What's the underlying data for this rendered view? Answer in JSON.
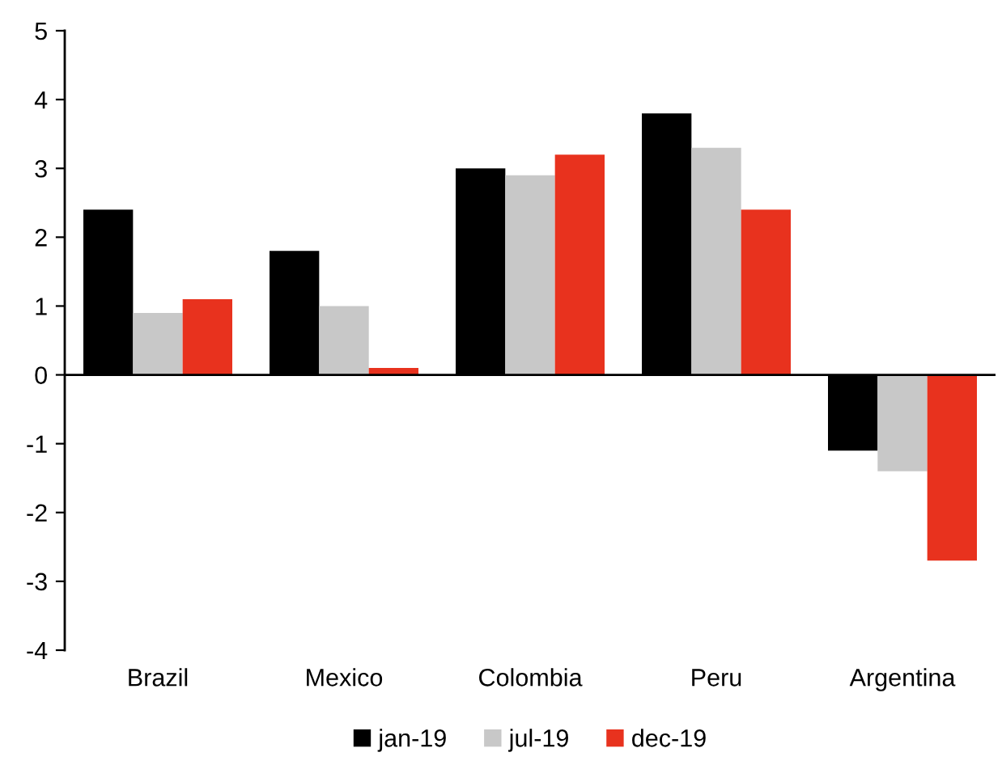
{
  "chart_data": {
    "type": "bar",
    "categories": [
      "Brazil",
      "Mexico",
      "Colombia",
      "Peru",
      "Argentina"
    ],
    "series": [
      {
        "name": "jan-19",
        "color": "#000000",
        "values": [
          2.4,
          1.8,
          3.0,
          3.8,
          -1.1
        ]
      },
      {
        "name": "jul-19",
        "color": "#c8c8c8",
        "values": [
          0.9,
          1.0,
          2.9,
          3.3,
          -1.4
        ]
      },
      {
        "name": "dec-19",
        "color": "#e8321e",
        "values": [
          1.1,
          0.1,
          3.2,
          2.4,
          -2.7
        ]
      }
    ],
    "ylim": [
      -4,
      5
    ],
    "yticks": [
      -4,
      -3,
      -2,
      -1,
      0,
      1,
      2,
      3,
      4,
      5
    ],
    "ref_lines": [
      {
        "axis": "y",
        "value": 0,
        "color": "#000000"
      }
    ],
    "legend": "bottom"
  }
}
